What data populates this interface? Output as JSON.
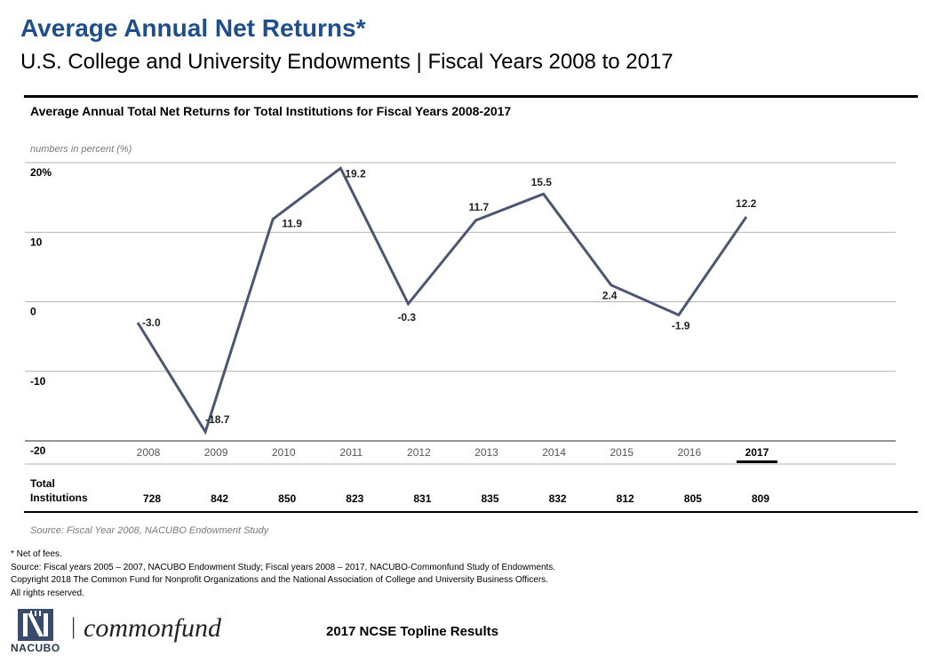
{
  "page": {
    "title": "Average Annual Net Returns*",
    "subtitle": "U.S. College and University Endowments | Fiscal Years 2008 to 2017"
  },
  "chart_data": {
    "type": "line",
    "title": "Average Annual Total Net Returns for Total Institutions for Fiscal Years 2008-2017",
    "units_note": "numbers in percent (%)",
    "x": [
      "2008",
      "2009",
      "2010",
      "2011",
      "2012",
      "2013",
      "2014",
      "2015",
      "2016",
      "2017"
    ],
    "values": [
      -3.0,
      -18.7,
      11.9,
      19.2,
      -0.3,
      11.7,
      15.5,
      2.4,
      -1.9,
      12.2
    ],
    "value_labels": [
      "-3.0",
      "-18.7",
      "11.9",
      "19.2",
      "-0.3",
      "11.7",
      "15.5",
      "2.4",
      "-1.9",
      "12.2"
    ],
    "y_ticks": [
      20,
      10,
      0,
      -10,
      -20
    ],
    "y_tick_labels": [
      "20%",
      "10",
      "0",
      "-10",
      "-20"
    ],
    "ylim": [
      -20,
      20
    ],
    "grid": true,
    "highlight_year": "2017",
    "line_color": "#4a5674",
    "table": {
      "row_label": "Total Institutions",
      "values": [
        "728",
        "842",
        "850",
        "823",
        "831",
        "835",
        "832",
        "812",
        "805",
        "809"
      ]
    },
    "source": "Source: Fiscal Year 2008, NACUBO Endowment Study"
  },
  "notes": [
    "* Net of fees.",
    "Source: Fiscal years 2005 – 2007, NACUBO Endowment Study; Fiscal years 2008 – 2017, NACUBO-Commonfund Study of Endowments.",
    "Copyright 2018 The Common Fund for Nonprofit Organizations and the National Association of College and University Business Officers.",
    "All rights reserved."
  ],
  "footer": {
    "nacubo_logo": "NACUBO",
    "separator": "|",
    "brand_text": "commonfund",
    "report_title": "2017 NCSE Topline Results"
  }
}
